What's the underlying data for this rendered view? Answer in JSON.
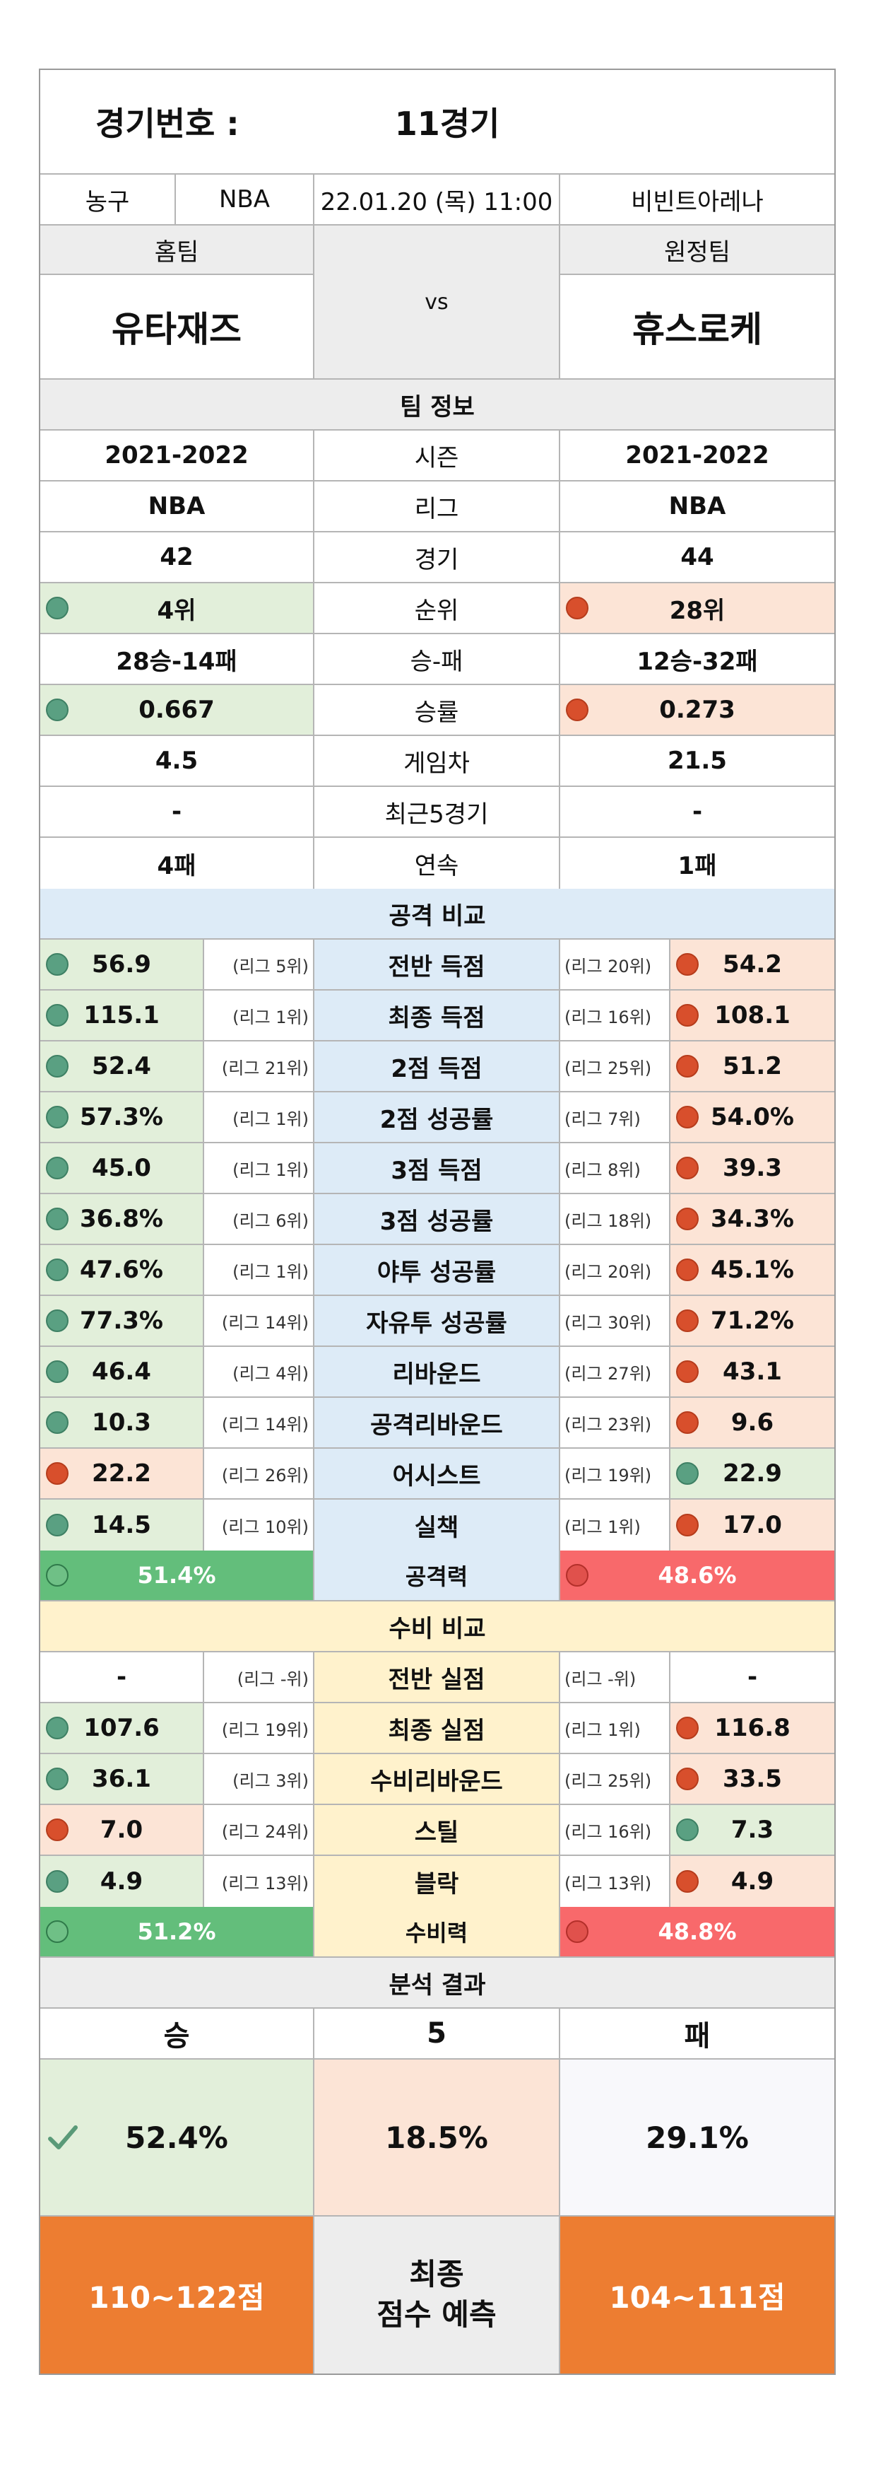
{
  "header": {
    "label": "경기번호 :",
    "game": "11경기"
  },
  "info": {
    "sport": "농구",
    "league": "NBA",
    "datetime": "22.01.20 (목) 11:00",
    "venue": "비빈트아레나"
  },
  "teams": {
    "home_label": "홈팀",
    "away_label": "원정팀",
    "vs": "vs",
    "home": "유타재즈",
    "away": "휴스로케"
  },
  "team_info": {
    "title": "팀 정보",
    "rows": [
      {
        "label": "시즌",
        "home": "2021-2022",
        "away": "2021-2022"
      },
      {
        "label": "리그",
        "home": "NBA",
        "away": "NBA"
      },
      {
        "label": "경기",
        "home": "42",
        "away": "44"
      },
      {
        "label": "순위",
        "home": "4위",
        "away": "28위"
      },
      {
        "label": "승-패",
        "home": "28승-14패",
        "away": "12승-32패"
      },
      {
        "label": "승률",
        "home": "0.667",
        "away": "0.273"
      },
      {
        "label": "게임차",
        "home": "4.5",
        "away": "21.5"
      },
      {
        "label": "최근5경기",
        "home": "-",
        "away": "-"
      },
      {
        "label": "연속",
        "home": "4패",
        "away": "1패"
      }
    ]
  },
  "offense": {
    "title": "공격 비교",
    "rows": [
      {
        "label": "전반 득점",
        "home": "56.9",
        "home_rank": "(리그 5위)",
        "away": "54.2",
        "away_rank": "(리그 20위)"
      },
      {
        "label": "최종 득점",
        "home": "115.1",
        "home_rank": "(리그 1위)",
        "away": "108.1",
        "away_rank": "(리그 16위)"
      },
      {
        "label": "2점 득점",
        "home": "52.4",
        "home_rank": "(리그 21위)",
        "away": "51.2",
        "away_rank": "(리그 25위)"
      },
      {
        "label": "2점 성공률",
        "home": "57.3%",
        "home_rank": "(리그 1위)",
        "away": "54.0%",
        "away_rank": "(리그 7위)"
      },
      {
        "label": "3점 득점",
        "home": "45.0",
        "home_rank": "(리그 1위)",
        "away": "39.3",
        "away_rank": "(리그 8위)"
      },
      {
        "label": "3점 성공률",
        "home": "36.8%",
        "home_rank": "(리그 6위)",
        "away": "34.3%",
        "away_rank": "(리그 18위)"
      },
      {
        "label": "야투 성공률",
        "home": "47.6%",
        "home_rank": "(리그 1위)",
        "away": "45.1%",
        "away_rank": "(리그 20위)"
      },
      {
        "label": "자유투 성공률",
        "home": "77.3%",
        "home_rank": "(리그 14위)",
        "away": "71.2%",
        "away_rank": "(리그 30위)"
      },
      {
        "label": "리바운드",
        "home": "46.4",
        "home_rank": "(리그 4위)",
        "away": "43.1",
        "away_rank": "(리그 27위)"
      },
      {
        "label": "공격리바운드",
        "home": "10.3",
        "home_rank": "(리그 14위)",
        "away": "9.6",
        "away_rank": "(리그 23위)"
      },
      {
        "label": "어시스트",
        "home": "22.2",
        "home_rank": "(리그 26위)",
        "away": "22.9",
        "away_rank": "(리그 19위)"
      },
      {
        "label": "실책",
        "home": "14.5",
        "home_rank": "(리그 10위)",
        "away": "17.0",
        "away_rank": "(리그 1위)"
      }
    ],
    "total_label": "공격력",
    "home_total": "51.4%",
    "away_total": "48.6%"
  },
  "defense": {
    "title": "수비 비교",
    "rows": [
      {
        "label": "전반 실점",
        "home": "-",
        "home_rank": "(리그 -위)",
        "away": "-",
        "away_rank": "(리그 -위)"
      },
      {
        "label": "최종 실점",
        "home": "107.6",
        "home_rank": "(리그 19위)",
        "away": "116.8",
        "away_rank": "(리그 1위)"
      },
      {
        "label": "수비리바운드",
        "home": "36.1",
        "home_rank": "(리그 3위)",
        "away": "33.5",
        "away_rank": "(리그 25위)"
      },
      {
        "label": "스틸",
        "home": "7.0",
        "home_rank": "(리그 24위)",
        "away": "7.3",
        "away_rank": "(리그 16위)"
      },
      {
        "label": "블락",
        "home": "4.9",
        "home_rank": "(리그 13위)",
        "away": "4.9",
        "away_rank": "(리그 13위)"
      }
    ],
    "total_label": "수비력",
    "home_total": "51.2%",
    "away_total": "48.8%"
  },
  "result": {
    "title": "분석 결과",
    "win": "승",
    "draw": "5",
    "lose": "패",
    "win_pct": "52.4%",
    "draw_pct": "18.5%",
    "lose_pct": "29.1%",
    "home_score": "110~122점",
    "away_score": "104~111점",
    "predict_line1": "최종",
    "predict_line2": "점수 예측"
  },
  "colors": {
    "good": "#e2efda",
    "bad": "#fce4d6",
    "offense": "#ddebf7",
    "defense": "#fff2cc",
    "score": "#ed7d31"
  }
}
